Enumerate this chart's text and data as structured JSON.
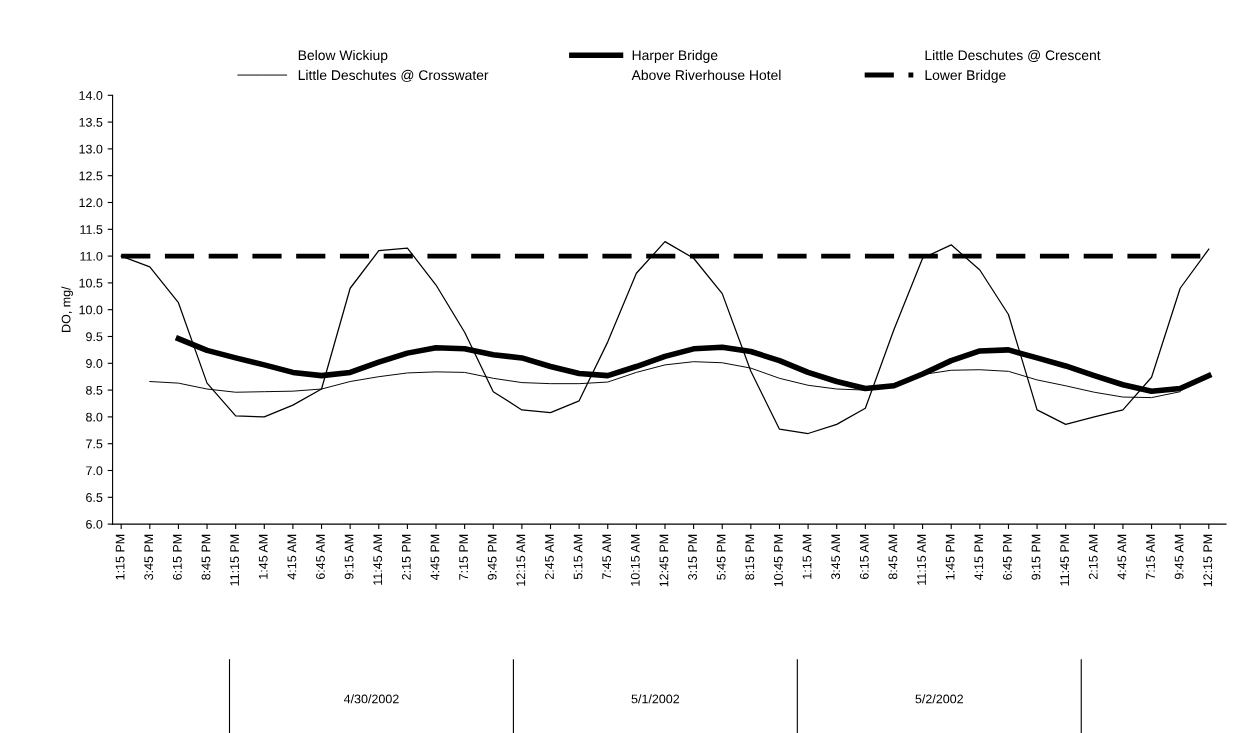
{
  "chart_data": {
    "type": "line",
    "ylabel": "DO, mg/",
    "categories": [
      "1:15 PM",
      "3:45 PM",
      "6:15 PM",
      "8:45 PM",
      "11:15 PM",
      "1:45 AM",
      "4:15 AM",
      "6:45 AM",
      "9:15 AM",
      "11:45 AM",
      "2:15 PM",
      "4:45 PM",
      "7:15 PM",
      "9:45 PM",
      "12:15 AM",
      "2:45 AM",
      "5:15 AM",
      "7:45 AM",
      "10:15 AM",
      "12:45 PM",
      "3:15 PM",
      "5:45 PM",
      "8:15 PM",
      "10:45 PM",
      "1:15 AM",
      "3:45 AM",
      "6:15 AM",
      "8:45 AM",
      "11:15 AM",
      "1:45 PM",
      "4:15 PM",
      "6:45 PM",
      "9:15 PM",
      "11:45 PM",
      "2:15 AM",
      "4:45 AM",
      "7:15 AM",
      "9:45 AM",
      "12:15 PM"
    ],
    "series": [
      {
        "name": "Below Wickiup",
        "values": [
          null,
          null,
          null,
          null,
          null,
          null,
          null,
          null,
          null,
          null,
          null,
          null,
          null,
          null,
          null,
          null,
          null,
          null,
          null,
          null,
          null,
          null,
          null,
          null,
          null,
          null,
          null,
          null,
          null,
          null,
          null,
          null,
          null,
          null,
          null,
          null,
          null,
          null,
          null
        ]
      },
      {
        "name": "Harper Bridge",
        "color": "#000000",
        "values": [
          null,
          null,
          9.46,
          9.24,
          9.1,
          8.97,
          8.83,
          8.77,
          8.83,
          9.02,
          9.19,
          9.29,
          9.27,
          9.16,
          9.1,
          8.94,
          8.81,
          8.77,
          8.94,
          9.13,
          9.27,
          9.3,
          9.22,
          9.05,
          8.83,
          8.66,
          8.53,
          8.58,
          8.8,
          9.05,
          9.23,
          9.25,
          9.1,
          8.95,
          8.77,
          8.6,
          8.48,
          8.53,
          8.77
        ]
      },
      {
        "name": "Little Deschutes @ Crescent",
        "values": [
          null,
          null,
          null,
          null,
          null,
          null,
          null,
          null,
          null,
          null,
          null,
          null,
          null,
          null,
          null,
          null,
          null,
          null,
          null,
          null,
          null,
          null,
          null,
          null,
          null,
          null,
          null,
          null,
          null,
          null,
          null,
          null,
          null,
          null,
          null,
          null,
          null,
          null,
          null
        ]
      },
      {
        "name": "Little Deschutes @ Crosswater",
        "color": "#000000",
        "values": [
          null,
          8.66,
          8.63,
          8.52,
          8.46,
          8.47,
          8.48,
          8.52,
          8.66,
          8.75,
          8.82,
          8.84,
          8.83,
          8.72,
          8.64,
          8.62,
          8.62,
          8.65,
          8.83,
          8.97,
          9.03,
          9.01,
          8.91,
          8.72,
          8.59,
          8.52,
          8.5,
          8.62,
          8.79,
          8.87,
          8.88,
          8.85,
          8.69,
          8.58,
          8.46,
          8.37,
          8.36,
          8.47,
          null
        ]
      },
      {
        "name": "Above Riverhouse Hotel",
        "values": [
          null,
          null,
          null,
          null,
          null,
          null,
          null,
          null,
          null,
          null,
          null,
          null,
          null,
          null,
          null,
          null,
          null,
          null,
          null,
          null,
          null,
          null,
          null,
          null,
          null,
          null,
          null,
          null,
          null,
          null,
          null,
          null,
          null,
          null,
          null,
          null,
          null,
          null,
          null
        ]
      },
      {
        "name": "Lower Bridge",
        "color": "#000000",
        "line_style": "dashed",
        "values": [
          11.0,
          11.0,
          11.0,
          11.0,
          11.0,
          11.0,
          11.0,
          11.0,
          11.0,
          11.0,
          11.0,
          11.0,
          11.0,
          11.0,
          11.0,
          11.0,
          11.0,
          11.0,
          11.0,
          11.0,
          11.0,
          11.0,
          11.0,
          11.0,
          11.0,
          11.0,
          11.0,
          11.0,
          11.0,
          11.0,
          11.0,
          11.0,
          11.0,
          11.0,
          11.0,
          11.0,
          11.0,
          11.0,
          11.0
        ]
      },
      {
        "color": "#000000",
        "values": [
          11.0,
          10.8,
          10.13,
          8.63,
          8.02,
          8.0,
          8.22,
          8.52,
          10.4,
          11.1,
          11.15,
          10.46,
          9.58,
          8.47,
          8.13,
          8.08,
          8.3,
          9.4,
          10.68,
          11.27,
          10.96,
          10.3,
          8.85,
          7.77,
          7.69,
          7.86,
          8.16,
          9.63,
          10.96,
          11.21,
          10.74,
          9.91,
          8.13,
          7.86,
          8.0,
          8.13,
          8.74,
          10.4,
          11.13
        ]
      }
    ],
    "ylim": [
      6.0,
      14.0
    ],
    "yticks": [
      {
        "value": 6,
        "label": "6.0"
      },
      {
        "value": 6.5,
        "label": "6.5"
      },
      {
        "value": 7,
        "label": "7.0"
      },
      {
        "value": 7.5,
        "label": "7.5"
      },
      {
        "value": 8,
        "label": "8.0"
      },
      {
        "value": 8.5,
        "label": "8.5"
      },
      {
        "value": 9,
        "label": "9.0"
      },
      {
        "value": 9.5,
        "label": "9.5"
      },
      {
        "value": 10,
        "label": "10.0"
      },
      {
        "value": 10.5,
        "label": "10.5"
      },
      {
        "value": 11,
        "label": "11.0"
      },
      {
        "value": 11.5,
        "label": "11.5"
      },
      {
        "value": 12,
        "label": "12.0"
      },
      {
        "value": 12.5,
        "label": "12.5"
      },
      {
        "value": 13,
        "label": "13.0"
      },
      {
        "value": 13.5,
        "label": "13.5"
      },
      {
        "value": 14,
        "label": "14.0"
      }
    ],
    "annotations": [
      "4/30/2002",
      "5/1/2002",
      "5/2/2002"
    ],
    "grid": false,
    "legend": "top",
    "marker": "none",
    "line_style": "solid"
  }
}
